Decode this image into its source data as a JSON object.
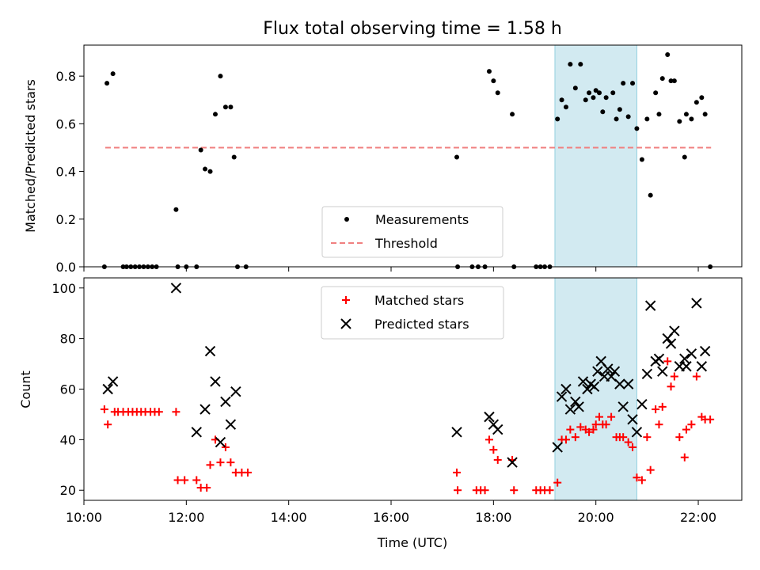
{
  "title": "Flux total observing time = 1.58 h",
  "chart_data": [
    {
      "type": "scatter",
      "ylabel": "Matched/Predicted stars",
      "ylim": [
        0,
        0.93
      ],
      "yticks": [
        "0.0",
        "0.2",
        "0.4",
        "0.6",
        "0.8"
      ],
      "xlim": [
        10.0,
        22.85
      ],
      "grid": false,
      "shaded_span": {
        "from": "19:12",
        "to": "20:48",
        "color": "#add8e6"
      },
      "threshold": {
        "name": "Threshold",
        "value": 0.5,
        "x": [
          "10:25",
          "22:15"
        ],
        "color": "#f08080"
      },
      "legend": {
        "placement": "bottom-center",
        "entries": [
          "Measurements",
          "Threshold"
        ]
      },
      "series": [
        {
          "name": "Measurements",
          "marker": "dot",
          "color": "#000000",
          "points": [
            [
              "10:24",
              0
            ],
            [
              "10:27",
              0.77
            ],
            [
              "10:34",
              0.81
            ],
            [
              "10:46",
              0
            ],
            [
              "10:50",
              0
            ],
            [
              "10:55",
              0
            ],
            [
              "11:00",
              0
            ],
            [
              "11:05",
              0
            ],
            [
              "11:10",
              0
            ],
            [
              "11:15",
              0
            ],
            [
              "11:20",
              0
            ],
            [
              "11:25",
              0
            ],
            [
              "11:48",
              0.24
            ],
            [
              "11:50",
              0
            ],
            [
              "12:00",
              0
            ],
            [
              "12:12",
              0
            ],
            [
              "12:17",
              0.49
            ],
            [
              "12:22",
              0.41
            ],
            [
              "12:28",
              0.4
            ],
            [
              "12:34",
              0.64
            ],
            [
              "12:40",
              0.8
            ],
            [
              "12:46",
              0.67
            ],
            [
              "12:52",
              0.67
            ],
            [
              "12:56",
              0.46
            ],
            [
              "13:00",
              0
            ],
            [
              "13:10",
              0
            ],
            [
              "17:17",
              0.46
            ],
            [
              "17:18",
              0
            ],
            [
              "17:35",
              0
            ],
            [
              "17:42",
              0
            ],
            [
              "17:50",
              0
            ],
            [
              "17:55",
              0.82
            ],
            [
              "18:00",
              0.78
            ],
            [
              "18:05",
              0.73
            ],
            [
              "18:22",
              0.64
            ],
            [
              "18:24",
              0
            ],
            [
              "18:50",
              0
            ],
            [
              "18:55",
              0
            ],
            [
              "19:00",
              0
            ],
            [
              "19:06",
              0
            ],
            [
              "19:15",
              0.62
            ],
            [
              "19:20",
              0.7
            ],
            [
              "19:25",
              0.67
            ],
            [
              "19:30",
              0.85
            ],
            [
              "19:36",
              0.75
            ],
            [
              "19:42",
              0.85
            ],
            [
              "19:48",
              0.7
            ],
            [
              "19:52",
              0.73
            ],
            [
              "19:57",
              0.71
            ],
            [
              "20:00",
              0.74
            ],
            [
              "20:04",
              0.73
            ],
            [
              "20:08",
              0.65
            ],
            [
              "20:12",
              0.71
            ],
            [
              "20:20",
              0.73
            ],
            [
              "20:24",
              0.62
            ],
            [
              "20:28",
              0.66
            ],
            [
              "20:32",
              0.77
            ],
            [
              "20:38",
              0.63
            ],
            [
              "20:43",
              0.77
            ],
            [
              "20:48",
              0.58
            ],
            [
              "20:54",
              0.45
            ],
            [
              "21:00",
              0.62
            ],
            [
              "21:04",
              0.3
            ],
            [
              "21:10",
              0.73
            ],
            [
              "21:14",
              0.64
            ],
            [
              "21:18",
              0.79
            ],
            [
              "21:24",
              0.89
            ],
            [
              "21:28",
              0.78
            ],
            [
              "21:32",
              0.78
            ],
            [
              "21:38",
              0.61
            ],
            [
              "21:44",
              0.46
            ],
            [
              "21:46",
              0.64
            ],
            [
              "21:52",
              0.62
            ],
            [
              "21:58",
              0.69
            ],
            [
              "22:04",
              0.71
            ],
            [
              "22:08",
              0.64
            ],
            [
              "22:14",
              0
            ]
          ]
        }
      ]
    },
    {
      "type": "scatter",
      "xlabel": "Time (UTC)",
      "ylabel": "Count",
      "ylim": [
        16,
        104
      ],
      "yticks": [
        "20",
        "40",
        "60",
        "80",
        "100"
      ],
      "xlim": [
        10.0,
        22.85
      ],
      "xticks": [
        "10:00",
        "12:00",
        "14:00",
        "16:00",
        "18:00",
        "20:00",
        "22:00"
      ],
      "grid": false,
      "shaded_span": {
        "from": "19:12",
        "to": "20:48",
        "color": "#add8e6"
      },
      "legend": {
        "placement": "top-center",
        "entries": [
          "Matched stars",
          "Predicted stars"
        ]
      },
      "series": [
        {
          "name": "Matched stars",
          "marker": "plus",
          "color": "#ff0000",
          "points": [
            [
              "10:24",
              52
            ],
            [
              "10:28",
              46
            ],
            [
              "10:36",
              51
            ],
            [
              "10:40",
              51
            ],
            [
              "10:46",
              51
            ],
            [
              "10:52",
              51
            ],
            [
              "10:57",
              51
            ],
            [
              "11:02",
              51
            ],
            [
              "11:07",
              51
            ],
            [
              "11:12",
              51
            ],
            [
              "11:18",
              51
            ],
            [
              "11:23",
              51
            ],
            [
              "11:28",
              51
            ],
            [
              "11:48",
              51
            ],
            [
              "11:50",
              24
            ],
            [
              "11:58",
              24
            ],
            [
              "12:12",
              24
            ],
            [
              "12:17",
              21
            ],
            [
              "12:24",
              21
            ],
            [
              "12:28",
              30
            ],
            [
              "12:34",
              40
            ],
            [
              "12:40",
              31
            ],
            [
              "12:46",
              37
            ],
            [
              "12:52",
              31
            ],
            [
              "12:58",
              27
            ],
            [
              "13:05",
              27
            ],
            [
              "13:12",
              27
            ],
            [
              "17:17",
              27
            ],
            [
              "17:18",
              20
            ],
            [
              "17:40",
              20
            ],
            [
              "17:45",
              20
            ],
            [
              "17:50",
              20
            ],
            [
              "17:55",
              40
            ],
            [
              "18:00",
              36
            ],
            [
              "18:05",
              32
            ],
            [
              "18:22",
              32
            ],
            [
              "18:24",
              20
            ],
            [
              "18:50",
              20
            ],
            [
              "18:55",
              20
            ],
            [
              "19:00",
              20
            ],
            [
              "19:06",
              20
            ],
            [
              "19:15",
              23
            ],
            [
              "19:20",
              40
            ],
            [
              "19:25",
              40
            ],
            [
              "19:30",
              44
            ],
            [
              "19:36",
              41
            ],
            [
              "19:42",
              45
            ],
            [
              "19:48",
              44
            ],
            [
              "19:52",
              43
            ],
            [
              "19:57",
              44
            ],
            [
              "20:00",
              46
            ],
            [
              "20:04",
              49
            ],
            [
              "20:08",
              46
            ],
            [
              "20:12",
              46
            ],
            [
              "20:18",
              49
            ],
            [
              "20:24",
              41
            ],
            [
              "20:28",
              41
            ],
            [
              "20:32",
              41
            ],
            [
              "20:38",
              39
            ],
            [
              "20:43",
              37
            ],
            [
              "20:48",
              25
            ],
            [
              "20:54",
              24
            ],
            [
              "21:00",
              41
            ],
            [
              "21:04",
              28
            ],
            [
              "21:10",
              52
            ],
            [
              "21:14",
              46
            ],
            [
              "21:18",
              53
            ],
            [
              "21:24",
              71
            ],
            [
              "21:28",
              61
            ],
            [
              "21:32",
              65
            ],
            [
              "21:38",
              41
            ],
            [
              "21:44",
              33
            ],
            [
              "21:46",
              44
            ],
            [
              "21:52",
              46
            ],
            [
              "21:58",
              65
            ],
            [
              "22:04",
              49
            ],
            [
              "22:08",
              48
            ],
            [
              "22:14",
              48
            ]
          ]
        },
        {
          "name": "Predicted stars",
          "marker": "x",
          "color": "#000000",
          "points": [
            [
              "10:28",
              60
            ],
            [
              "10:34",
              63
            ],
            [
              "11:48",
              100
            ],
            [
              "12:12",
              43
            ],
            [
              "12:22",
              52
            ],
            [
              "12:28",
              75
            ],
            [
              "12:34",
              63
            ],
            [
              "12:40",
              39
            ],
            [
              "12:46",
              55
            ],
            [
              "12:52",
              46
            ],
            [
              "12:58",
              59
            ],
            [
              "17:17",
              43
            ],
            [
              "17:55",
              49
            ],
            [
              "18:00",
              46
            ],
            [
              "18:05",
              44
            ],
            [
              "18:22",
              31
            ],
            [
              "19:15",
              37
            ],
            [
              "19:20",
              57
            ],
            [
              "19:25",
              60
            ],
            [
              "19:30",
              52
            ],
            [
              "19:36",
              55
            ],
            [
              "19:40",
              53
            ],
            [
              "19:45",
              63
            ],
            [
              "19:50",
              60
            ],
            [
              "19:54",
              62
            ],
            [
              "19:58",
              61
            ],
            [
              "20:02",
              67
            ],
            [
              "20:06",
              71
            ],
            [
              "20:10",
              65
            ],
            [
              "20:14",
              68
            ],
            [
              "20:18",
              65
            ],
            [
              "20:22",
              67
            ],
            [
              "20:28",
              62
            ],
            [
              "20:32",
              53
            ],
            [
              "20:38",
              62
            ],
            [
              "20:43",
              48
            ],
            [
              "20:48",
              43
            ],
            [
              "20:54",
              54
            ],
            [
              "21:00",
              66
            ],
            [
              "21:04",
              93
            ],
            [
              "21:10",
              71
            ],
            [
              "21:14",
              72
            ],
            [
              "21:18",
              67
            ],
            [
              "21:24",
              80
            ],
            [
              "21:28",
              78
            ],
            [
              "21:32",
              83
            ],
            [
              "21:38",
              69
            ],
            [
              "21:44",
              72
            ],
            [
              "21:46",
              69
            ],
            [
              "21:52",
              74
            ],
            [
              "21:58",
              94
            ],
            [
              "22:04",
              69
            ],
            [
              "22:08",
              75
            ]
          ]
        }
      ]
    }
  ]
}
